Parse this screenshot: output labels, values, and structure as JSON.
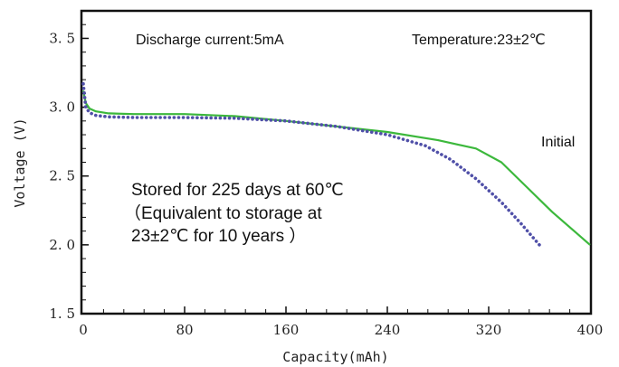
{
  "chart_data": {
    "type": "line",
    "xlabel": "Capacity(mAh)",
    "ylabel": "Voltage (V)",
    "xlim": [
      0,
      400
    ],
    "ylim": [
      1.5,
      3.7
    ],
    "x_ticks": [
      "0",
      "80",
      "160",
      "240",
      "320",
      "400"
    ],
    "y_ticks": [
      "1.5",
      "2.0",
      "2.5",
      "3.0",
      "3.5"
    ],
    "grid": false,
    "annotations": {
      "discharge": "Discharge current:5mA",
      "temperature": "Temperature:23±2℃",
      "initial": "Initial",
      "stored_line1": "Stored for 225 days at 60℃",
      "stored_line2": "（Equivalent to storage at",
      "stored_line3": "23±2℃ for 10 years ）"
    },
    "series": [
      {
        "name": "Initial",
        "style": "solid",
        "color": "#3cb83c",
        "x": [
          0,
          2,
          5,
          10,
          20,
          40,
          80,
          120,
          160,
          200,
          240,
          280,
          310,
          330,
          350,
          370,
          400
        ],
        "y": [
          3.12,
          3.03,
          2.99,
          2.97,
          2.955,
          2.95,
          2.95,
          2.935,
          2.9,
          2.86,
          2.82,
          2.76,
          2.7,
          2.6,
          2.42,
          2.24,
          2.0
        ]
      },
      {
        "name": "Stored for 225 days at 60℃",
        "style": "dotted",
        "color": "#5050a8",
        "x": [
          0,
          2,
          5,
          10,
          20,
          40,
          80,
          120,
          160,
          200,
          240,
          270,
          290,
          310,
          330,
          345,
          360
        ],
        "y": [
          3.17,
          3.0,
          2.96,
          2.94,
          2.93,
          2.925,
          2.925,
          2.92,
          2.9,
          2.86,
          2.8,
          2.72,
          2.62,
          2.48,
          2.31,
          2.16,
          2.0
        ]
      }
    ]
  }
}
